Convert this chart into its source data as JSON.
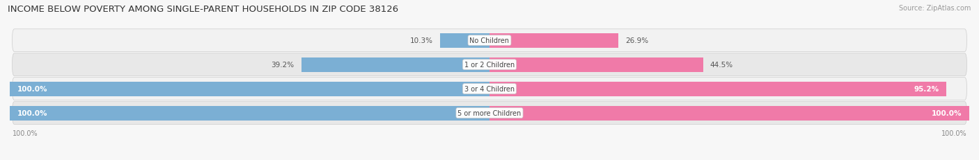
{
  "title": "INCOME BELOW POVERTY AMONG SINGLE-PARENT HOUSEHOLDS IN ZIP CODE 38126",
  "source": "Source: ZipAtlas.com",
  "categories": [
    "No Children",
    "1 or 2 Children",
    "3 or 4 Children",
    "5 or more Children"
  ],
  "father_values": [
    10.3,
    39.2,
    100.0,
    100.0
  ],
  "mother_values": [
    26.9,
    44.5,
    95.2,
    100.0
  ],
  "max_value": 100.0,
  "father_color": "#7bafd4",
  "mother_color": "#f07aa8",
  "row_bg_light": "#f2f2f2",
  "row_bg_dark": "#e8e8e8",
  "fig_bg": "#f7f7f7",
  "title_fontsize": 9.5,
  "source_fontsize": 7,
  "bar_label_fontsize": 7.5,
  "category_fontsize": 7,
  "axis_fontsize": 7,
  "bar_height": 0.6,
  "axis_left_label": "100.0%",
  "axis_right_label": "100.0%"
}
